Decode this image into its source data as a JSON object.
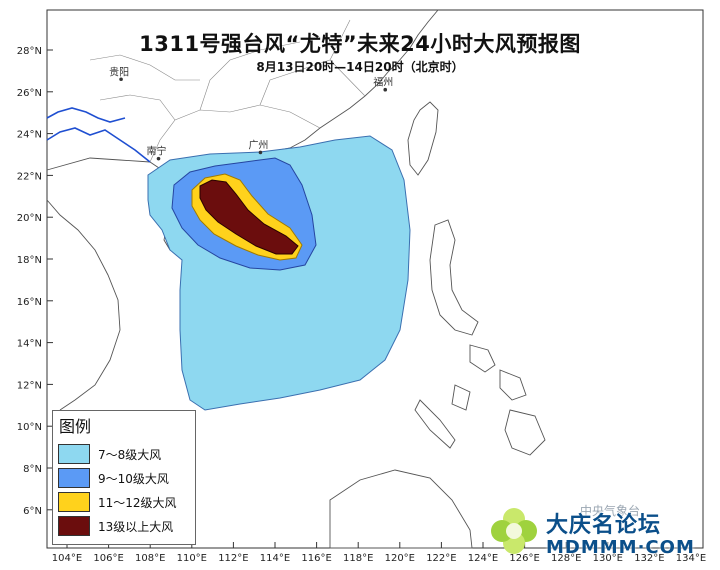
{
  "title": "1311号强台风“尤特”未来24小时大风预报图",
  "subtitle": "8月13日20时—14日20时（北京时）",
  "axes": {
    "lat_labels": [
      "28°N",
      "26°N",
      "24°N",
      "22°N",
      "20°N",
      "18°N",
      "16°N",
      "14°N",
      "12°N",
      "10°N",
      "8°N",
      "6°N"
    ],
    "lon_labels": [
      "104°E",
      "106°E",
      "108°E",
      "110°E",
      "112°E",
      "114°E",
      "116°E",
      "118°E",
      "120°E",
      "122°E",
      "124°E",
      "126°E",
      "128°E",
      "130°E",
      "132°E",
      "134°E"
    ]
  },
  "cities": [
    {
      "name": "贵阳",
      "lon": 106.6,
      "lat": 26.6
    },
    {
      "name": "福州",
      "lon": 119.3,
      "lat": 26.1
    },
    {
      "name": "南宁",
      "lon": 108.4,
      "lat": 22.8
    },
    {
      "name": "广州",
      "lon": 113.3,
      "lat": 23.1
    }
  ],
  "legend": {
    "title": "图例",
    "items": [
      {
        "label": "7～8级大风",
        "color": "#8ed8f0"
      },
      {
        "label": "9～10级大风",
        "color": "#5b9af5"
      },
      {
        "label": "11～12级大风",
        "color": "#ffd21c"
      },
      {
        "label": "13级以上大风",
        "color": "#6b0d0d"
      }
    ]
  },
  "colors": {
    "land": "#ffffff",
    "coast": "#555555",
    "province_border": "#888888",
    "national_border": "#1f4fd1"
  },
  "source": "中央气象台",
  "watermark": {
    "cn": "大庆名论坛",
    "en": "MDMMM·COM"
  }
}
